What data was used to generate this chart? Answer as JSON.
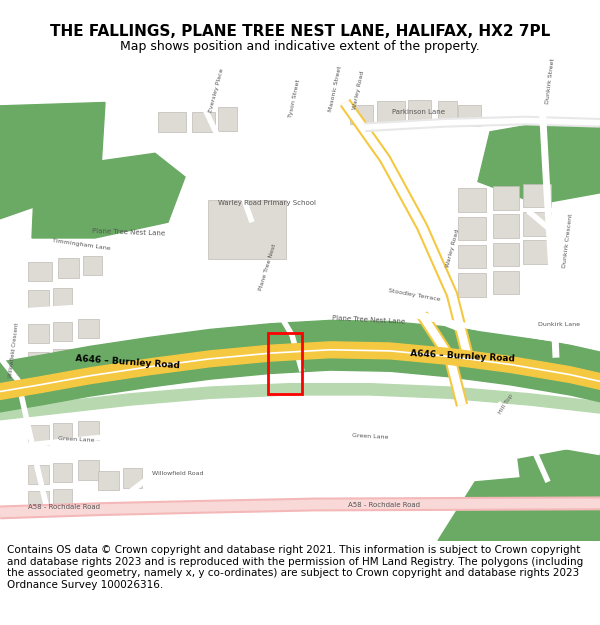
{
  "title": "THE FALLINGS, PLANE TREE NEST LANE, HALIFAX, HX2 7PL",
  "subtitle": "Map shows position and indicative extent of the property.",
  "copyright_text": "Contains OS data © Crown copyright and database right 2021. This information is subject to Crown copyright and database rights 2023 and is reproduced with the permission of HM Land Registry. The polygons (including the associated geometry, namely x, y co-ordinates) are subject to Crown copyright and database rights 2023 Ordnance Survey 100026316.",
  "map_bg": "#f0ede8",
  "road_major_color": "#f5c842",
  "road_minor_color": "#ffffff",
  "road_pink_color": "#f4b8b8",
  "green_area_color": "#6aaa64",
  "green_light_color": "#b8d9b0",
  "building_color": "#dedad4",
  "building_outline": "#c0bbb5",
  "plot_rect_color": "#ff0000",
  "title_fontsize": 11,
  "subtitle_fontsize": 9,
  "copyright_fontsize": 7.5,
  "fig_width": 6.0,
  "fig_height": 6.25,
  "dpi": 100
}
